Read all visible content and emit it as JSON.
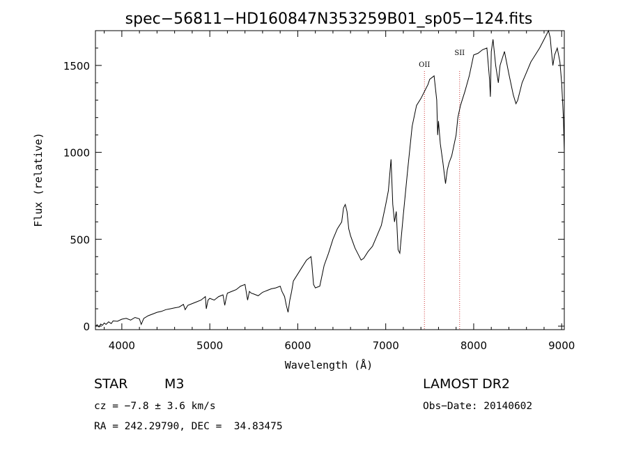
{
  "chart_data": {
    "type": "line",
    "title": "spec−56811−HD160847N353259B01_sp05−124.fits",
    "xlabel": "Wavelength (Å)",
    "ylabel": "Flux (relative)",
    "xlim": [
      3700,
      9030
    ],
    "ylim": [
      -20,
      1700
    ],
    "xticks": [
      4000,
      5000,
      6000,
      7000,
      8000,
      9000
    ],
    "yticks": [
      0,
      500,
      1000,
      1500
    ],
    "line_color": "#000000",
    "marker_color": "#cc3333",
    "line_markers": [
      {
        "label": "OII",
        "x": 7440
      },
      {
        "label": "SII",
        "x": 7840
      }
    ],
    "series": [
      {
        "x": [
          3700,
          3720,
          3740,
          3760,
          3780,
          3800,
          3820,
          3850,
          3880,
          3900,
          3950,
          4000,
          4050,
          4100,
          4150,
          4200,
          4220,
          4250,
          4300,
          4350,
          4400,
          4450,
          4500,
          4550,
          4600,
          4650,
          4700,
          4720,
          4750,
          4800,
          4850,
          4900,
          4950,
          4960,
          4980,
          5000,
          5050,
          5100,
          5150,
          5170,
          5190,
          5200,
          5250,
          5300,
          5350,
          5400,
          5430,
          5450,
          5470,
          5500,
          5550,
          5600,
          5650,
          5700,
          5750,
          5800,
          5820,
          5850,
          5870,
          5890,
          5910,
          5930,
          5950,
          6000,
          6050,
          6100,
          6150,
          6160,
          6180,
          6200,
          6250,
          6300,
          6350,
          6400,
          6450,
          6500,
          6520,
          6540,
          6560,
          6580,
          6600,
          6650,
          6700,
          6720,
          6750,
          6800,
          6850,
          6900,
          6950,
          7000,
          7030,
          7050,
          7060,
          7080,
          7100,
          7120,
          7140,
          7160,
          7200,
          7250,
          7300,
          7350,
          7400,
          7450,
          7480,
          7500,
          7550,
          7580,
          7590,
          7600,
          7620,
          7650,
          7680,
          7700,
          7720,
          7750,
          7800,
          7820,
          7850,
          7900,
          7950,
          8000,
          8050,
          8100,
          8150,
          8180,
          8190,
          8200,
          8220,
          8250,
          8280,
          8300,
          8350,
          8400,
          8450,
          8480,
          8500,
          8550,
          8600,
          8650,
          8700,
          8750,
          8800,
          8850,
          8870,
          8880,
          8900,
          8920,
          8950,
          8980,
          9000,
          9020,
          9030
        ],
        "y": [
          0,
          8,
          -5,
          12,
          5,
          18,
          10,
          25,
          15,
          30,
          28,
          40,
          45,
          35,
          50,
          42,
          10,
          45,
          60,
          70,
          80,
          85,
          95,
          100,
          105,
          110,
          125,
          95,
          120,
          130,
          140,
          150,
          170,
          100,
          150,
          160,
          150,
          170,
          180,
          120,
          170,
          190,
          200,
          210,
          230,
          240,
          150,
          200,
          190,
          185,
          175,
          195,
          205,
          215,
          220,
          230,
          200,
          170,
          120,
          80,
          150,
          200,
          260,
          300,
          340,
          380,
          400,
          360,
          240,
          220,
          230,
          350,
          420,
          500,
          560,
          600,
          680,
          700,
          660,
          560,
          520,
          450,
          400,
          380,
          390,
          430,
          460,
          520,
          580,
          700,
          780,
          900,
          960,
          700,
          600,
          660,
          440,
          420,
          640,
          900,
          1150,
          1270,
          1310,
          1360,
          1390,
          1420,
          1440,
          1300,
          1100,
          1180,
          1050,
          940,
          820,
          900,
          940,
          980,
          1100,
          1200,
          1270,
          1350,
          1440,
          1560,
          1570,
          1590,
          1600,
          1420,
          1320,
          1580,
          1650,
          1500,
          1400,
          1500,
          1580,
          1450,
          1330,
          1280,
          1300,
          1400,
          1460,
          1520,
          1560,
          1600,
          1650,
          1700,
          1660,
          1600,
          1500,
          1560,
          1600,
          1520,
          1400,
          1200,
          1000
        ]
      }
    ]
  },
  "info": {
    "object_type": "STAR",
    "subclass": "M3",
    "survey": "LAMOST DR2",
    "cz": "cz = −7.8 ± 3.6 km/s",
    "obs_date": "Obs−Date: 20140602",
    "coords": "RA = 242.29790, DEC =  34.83475"
  }
}
